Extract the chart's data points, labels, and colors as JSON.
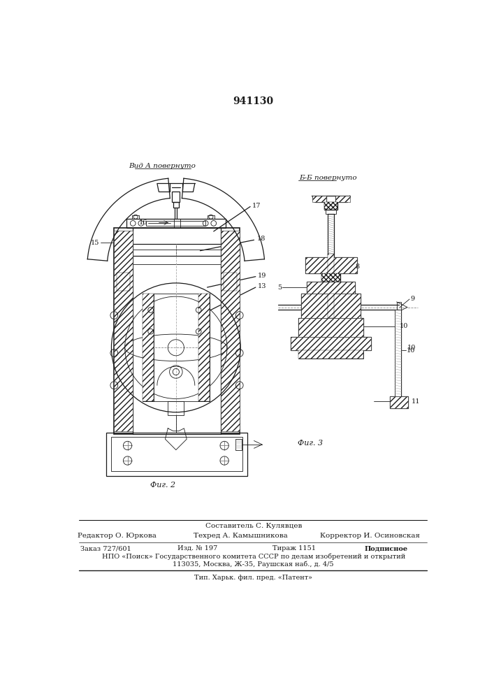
{
  "title": "941130",
  "bg_color": "#ffffff",
  "line_color": "#1a1a1a",
  "fig2_label": "Фиг. 2",
  "fig3_label": "Фиг. 3",
  "view_a_label": "Вид А повернуто",
  "view_bb_label": "Б-Б повернуто",
  "footer_compiler": "Составитель С. Кулявцев",
  "footer_editor": "Редактор О. Юркова",
  "footer_tech": "Техред А. Камышникова",
  "footer_corrector": "Корректор И. Осиновская",
  "footer_order": "Заказ 727/601",
  "footer_izd": "Изд. № 197",
  "footer_tirazh": "Тираж 1151",
  "footer_podp": "Подписное",
  "footer_npo": "НПО «Поиск» Государственного комитета СССР по делам изобретений и открытий",
  "footer_addr": "113035, Москва, Ж-35, Раушская наб., д. 4/5",
  "footer_tip": "Тип. Харьк. фил. пред. «Патент»"
}
